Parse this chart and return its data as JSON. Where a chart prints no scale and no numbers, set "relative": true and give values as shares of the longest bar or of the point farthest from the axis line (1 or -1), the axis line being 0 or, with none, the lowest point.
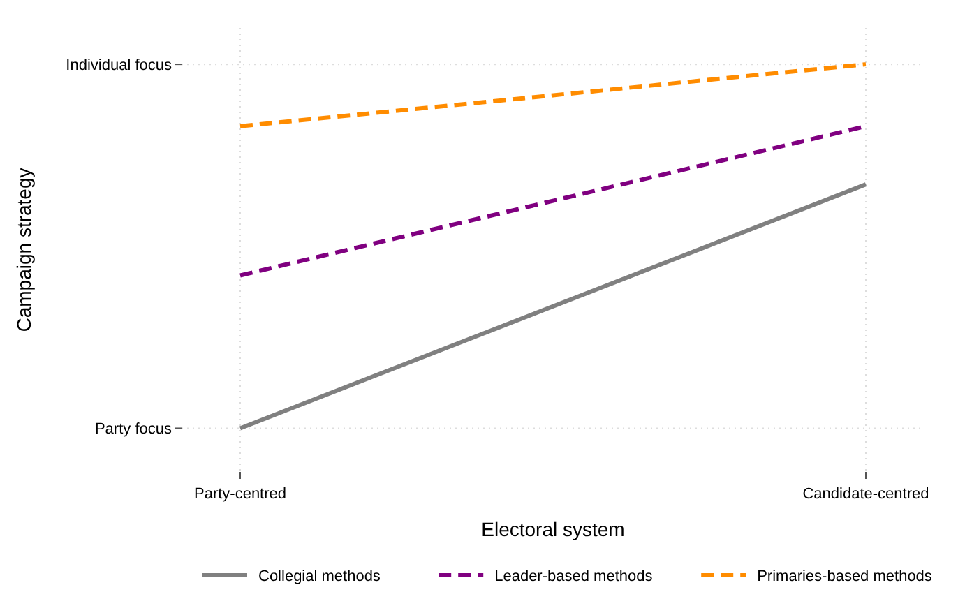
{
  "chart_data": {
    "type": "line",
    "xlabel": "Electoral system",
    "ylabel": "Campaign strategy",
    "categories": [
      "Party-centred",
      "Candidate-centred"
    ],
    "relative": true,
    "annotations": [
      "Party focus",
      "Individual focus"
    ],
    "grid": true,
    "legend": "bottom",
    "series": [
      {
        "name": "Collegial methods",
        "color": "#808080",
        "values": [
          0,
          0.67
        ],
        "line_style": "solid"
      },
      {
        "name": "Leader-based methods",
        "color": "#800080",
        "values": [
          0.42,
          0.83
        ],
        "line_style": "dashed"
      },
      {
        "name": "Primaries-based methods",
        "color": "#ff8c00",
        "values": [
          0.83,
          1.0
        ],
        "line_style": "dashed"
      }
    ]
  }
}
